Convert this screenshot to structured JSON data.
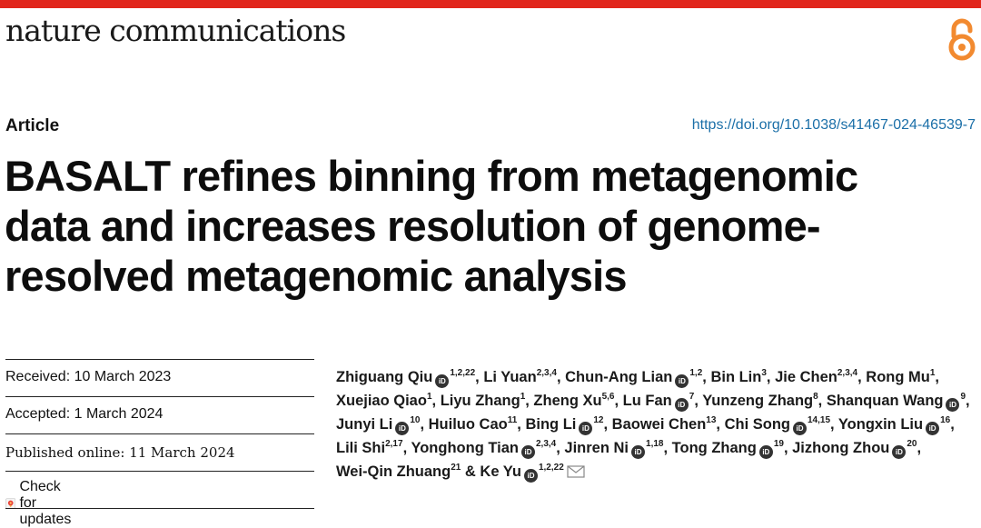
{
  "journal": {
    "name": "nature communications"
  },
  "icons": {
    "open_access": "open-access-icon",
    "orcid": "orcid-icon",
    "email": "mail-icon",
    "updates": "check-updates-icon"
  },
  "colors": {
    "accent": "#e1261c",
    "open_access": "#f28a30",
    "link": "#1b6fa8"
  },
  "article": {
    "type": "Article",
    "doi": "https://doi.org/10.1038/s41467-024-46539-7",
    "title_lines": [
      "BASALT refines binning from metagenomic",
      "data and increases resolution of genome-",
      "resolved metagenomic analysis"
    ]
  },
  "dates": {
    "received": "Received: 10 March 2023",
    "accepted": "Accepted: 1 March 2024",
    "published": "Published online: 11 March 2024"
  },
  "check_updates": {
    "label": "Check for updates"
  },
  "authors": [
    {
      "name": "Zhiguang Qiu",
      "orcid": true,
      "aff": "1,2,22",
      "sep": ", "
    },
    {
      "name": "Li Yuan",
      "orcid": false,
      "aff": "2,3,4",
      "sep": ", "
    },
    {
      "name": "Chun-Ang Lian",
      "orcid": true,
      "aff": "1,2",
      "sep": ", "
    },
    {
      "name": "Bin Lin",
      "orcid": false,
      "aff": "3",
      "sep": ", "
    },
    {
      "name": "Jie Chen",
      "orcid": false,
      "aff": "2,3,4",
      "sep": ", "
    },
    {
      "name": "Rong Mu",
      "orcid": false,
      "aff": "1",
      "sep": ", "
    },
    {
      "name": "Xuejiao Qiao",
      "orcid": false,
      "aff": "1",
      "sep": ", "
    },
    {
      "name": "Liyu Zhang",
      "orcid": false,
      "aff": "1",
      "sep": ", "
    },
    {
      "name": "Zheng Xu",
      "orcid": false,
      "aff": "5,6",
      "sep": ", "
    },
    {
      "name": "Lu Fan",
      "orcid": true,
      "aff": "7",
      "sep": ", "
    },
    {
      "name": "Yunzeng Zhang",
      "orcid": false,
      "aff": "8",
      "sep": ", "
    },
    {
      "name": "Shanquan Wang",
      "orcid": true,
      "aff": "9",
      "sep": ", "
    },
    {
      "name": "Junyi Li",
      "orcid": true,
      "aff": "10",
      "sep": ", "
    },
    {
      "name": "Huiluo Cao",
      "orcid": false,
      "aff": "11",
      "sep": ", "
    },
    {
      "name": "Bing Li",
      "orcid": true,
      "aff": "12",
      "sep": ", "
    },
    {
      "name": "Baowei Chen",
      "orcid": false,
      "aff": "13",
      "sep": ", "
    },
    {
      "name": "Chi Song",
      "orcid": true,
      "aff": "14,15",
      "sep": ", "
    },
    {
      "name": "Yongxin Liu",
      "orcid": true,
      "aff": "16",
      "sep": ", "
    },
    {
      "name": "Lili Shi",
      "orcid": false,
      "aff": "2,17",
      "sep": ", "
    },
    {
      "name": "Yonghong Tian",
      "orcid": true,
      "aff": "2,3,4",
      "sep": ", "
    },
    {
      "name": "Jinren Ni",
      "orcid": true,
      "aff": "1,18",
      "sep": ", "
    },
    {
      "name": "Tong Zhang",
      "orcid": true,
      "aff": "19",
      "sep": ", "
    },
    {
      "name": "Jizhong Zhou",
      "orcid": true,
      "aff": "20",
      "sep": ", "
    },
    {
      "name": "Wei-Qin Zhuang",
      "orcid": false,
      "aff": "21",
      "sep": " & "
    },
    {
      "name": "Ke Yu",
      "orcid": true,
      "aff": "1,2,22",
      "sep": "",
      "email": true
    }
  ]
}
